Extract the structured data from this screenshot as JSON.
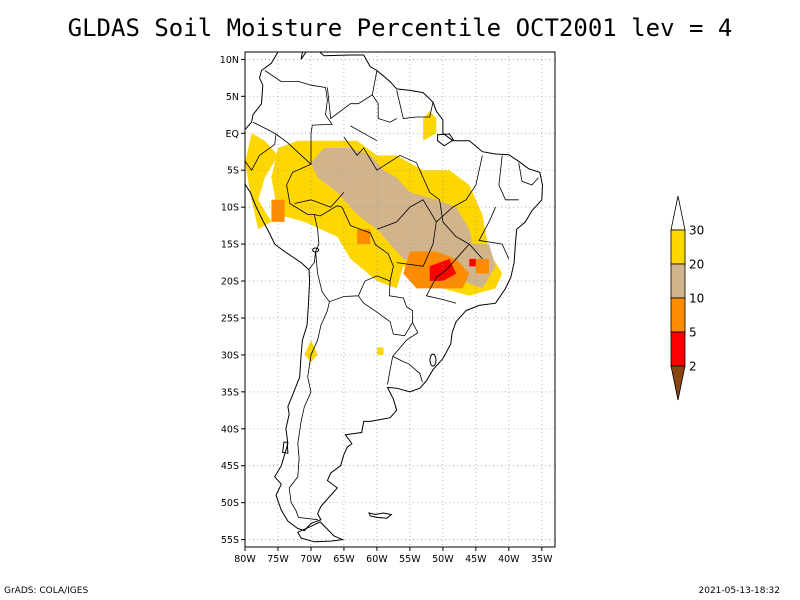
{
  "title": "GLDAS Soil Moisture Percentile OCT2001 lev = 4",
  "footer": {
    "left": "GrADS: COLA/IGES",
    "right": "2021-05-13-18:32"
  },
  "colorbar": {
    "labels": [
      "2",
      "5",
      "10",
      "20",
      "30"
    ],
    "colors": {
      "below_2": "#8b4513",
      "2_5": "#ff0000",
      "5_10": "#ff8c00",
      "10_20": "#d2b48c",
      "20_30": "#ffd700",
      "above_30": "#ffffff"
    }
  },
  "chart_data": {
    "type": "heatmap",
    "title": "GLDAS Soil Moisture Percentile OCT2001 lev = 4",
    "variable": "Soil Moisture Percentile",
    "month": "OCT2001",
    "level": "4",
    "lat_ticks": [
      "10N",
      "5N",
      "EQ",
      "5S",
      "10S",
      "15S",
      "20S",
      "25S",
      "30S",
      "35S",
      "40S",
      "45S",
      "50S",
      "55S"
    ],
    "lon_ticks": [
      "80W",
      "75W",
      "70W",
      "65W",
      "60W",
      "55W",
      "50W",
      "45W",
      "40W",
      "35W"
    ],
    "xlim": [
      -80,
      -33
    ],
    "ylim": [
      -56,
      11
    ],
    "grid": "dotted",
    "legend_placement": "right",
    "contour_levels": [
      2,
      5,
      10,
      20,
      30
    ],
    "regions": [
      {
        "class": "20_30",
        "lonlat": [
          [
            -69,
            -1
          ],
          [
            -63,
            -1
          ],
          [
            -60,
            -3
          ],
          [
            -57,
            -3
          ],
          [
            -53,
            -5
          ],
          [
            -49,
            -5
          ],
          [
            -46,
            -7
          ],
          [
            -44,
            -11
          ],
          [
            -43,
            -16
          ],
          [
            -41,
            -19
          ],
          [
            -42,
            -21
          ],
          [
            -46,
            -22
          ],
          [
            -50,
            -21
          ],
          [
            -53,
            -20
          ],
          [
            -56,
            -18
          ],
          [
            -57,
            -21
          ],
          [
            -60,
            -20
          ],
          [
            -64,
            -17
          ],
          [
            -66,
            -14
          ],
          [
            -71,
            -12
          ],
          [
            -75,
            -11
          ],
          [
            -76,
            -6
          ],
          [
            -75,
            -2
          ],
          [
            -72,
            -1
          ]
        ]
      },
      {
        "class": "20_30",
        "lonlat": [
          [
            -79,
            0
          ],
          [
            -77,
            -1
          ],
          [
            -75,
            -3
          ],
          [
            -77,
            -6
          ],
          [
            -78,
            -9
          ],
          [
            -76,
            -12
          ],
          [
            -78,
            -13
          ],
          [
            -79,
            -9
          ],
          [
            -80,
            -4
          ]
        ]
      },
      {
        "class": "20_30",
        "lonlat": [
          [
            -53,
            -1
          ],
          [
            -51,
            0
          ],
          [
            -51,
            2
          ],
          [
            -52,
            3
          ],
          [
            -53,
            2
          ]
        ]
      },
      {
        "class": "20_30",
        "lonlat": [
          [
            -71,
            -30
          ],
          [
            -70,
            -28
          ],
          [
            -69,
            -30
          ],
          [
            -70,
            -31
          ]
        ]
      },
      {
        "class": "20_30",
        "lonlat": [
          [
            -60,
            -29
          ],
          [
            -59,
            -29
          ],
          [
            -59,
            -30
          ],
          [
            -60,
            -30
          ]
        ]
      },
      {
        "class": "10_20",
        "lonlat": [
          [
            -68,
            -2
          ],
          [
            -64,
            -2
          ],
          [
            -61,
            -3
          ],
          [
            -59,
            -5
          ],
          [
            -57,
            -6
          ],
          [
            -55,
            -8
          ],
          [
            -51,
            -9
          ],
          [
            -48,
            -10
          ],
          [
            -46,
            -13
          ],
          [
            -45,
            -17
          ],
          [
            -48,
            -19
          ],
          [
            -52,
            -19
          ],
          [
            -56,
            -17
          ],
          [
            -58,
            -15
          ],
          [
            -60,
            -13
          ],
          [
            -63,
            -11
          ],
          [
            -66,
            -8
          ],
          [
            -69,
            -6
          ],
          [
            -70,
            -4
          ]
        ]
      },
      {
        "class": "10_20",
        "lonlat": [
          [
            -46,
            -15
          ],
          [
            -43,
            -15
          ],
          [
            -42,
            -18
          ],
          [
            -44,
            -21
          ],
          [
            -47,
            -20
          ]
        ]
      },
      {
        "class": "5_10",
        "lonlat": [
          [
            -55,
            -16
          ],
          [
            -51,
            -16
          ],
          [
            -48,
            -17
          ],
          [
            -46,
            -19
          ],
          [
            -47,
            -21
          ],
          [
            -50,
            -21
          ],
          [
            -54,
            -21
          ],
          [
            -56,
            -19
          ]
        ]
      },
      {
        "class": "5_10",
        "lonlat": [
          [
            -76,
            -9
          ],
          [
            -74,
            -9
          ],
          [
            -74,
            -12
          ],
          [
            -76,
            -12
          ]
        ]
      },
      {
        "class": "5_10",
        "lonlat": [
          [
            -45,
            -17
          ],
          [
            -43,
            -17
          ],
          [
            -43,
            -19
          ],
          [
            -45,
            -19
          ]
        ]
      },
      {
        "class": "5_10",
        "lonlat": [
          [
            -63,
            -13
          ],
          [
            -61,
            -13
          ],
          [
            -61,
            -15
          ],
          [
            -63,
            -15
          ]
        ]
      },
      {
        "class": "2_5",
        "lonlat": [
          [
            -52,
            -18
          ],
          [
            -49,
            -17
          ],
          [
            -48,
            -19
          ],
          [
            -50,
            -20
          ],
          [
            -52,
            -20
          ]
        ]
      },
      {
        "class": "2_5",
        "lonlat": [
          [
            -46,
            -17
          ],
          [
            -45,
            -17
          ],
          [
            -45,
            -18
          ],
          [
            -46,
            -18
          ]
        ]
      }
    ]
  }
}
